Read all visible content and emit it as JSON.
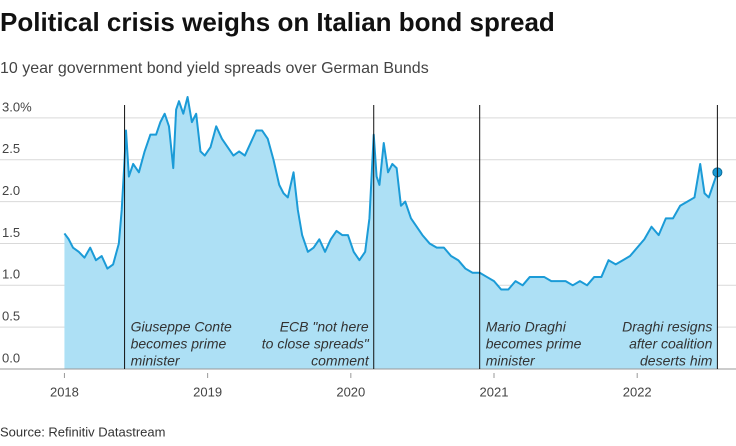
{
  "chart_data": {
    "type": "area",
    "title": "Political crisis weighs on Italian bond spread",
    "subtitle": "10 year government bond yield spreads over German Bunds",
    "source": "Source: Refinitiv Datastream",
    "x": [
      2018.0,
      2018.03,
      2018.06,
      2018.1,
      2018.14,
      2018.18,
      2018.22,
      2018.26,
      2018.3,
      2018.34,
      2018.38,
      2018.4,
      2018.42,
      2018.43,
      2018.45,
      2018.48,
      2018.52,
      2018.56,
      2018.6,
      2018.64,
      2018.67,
      2018.7,
      2018.73,
      2018.76,
      2018.78,
      2018.8,
      2018.83,
      2018.86,
      2018.89,
      2018.92,
      2018.95,
      2018.98,
      2019.02,
      2019.06,
      2019.1,
      2019.14,
      2019.18,
      2019.22,
      2019.26,
      2019.3,
      2019.34,
      2019.38,
      2019.42,
      2019.46,
      2019.5,
      2019.53,
      2019.56,
      2019.6,
      2019.63,
      2019.66,
      2019.7,
      2019.74,
      2019.78,
      2019.82,
      2019.86,
      2019.9,
      2019.94,
      2019.98,
      2020.02,
      2020.06,
      2020.1,
      2020.13,
      2020.16,
      2020.18,
      2020.2,
      2020.23,
      2020.26,
      2020.29,
      2020.32,
      2020.35,
      2020.38,
      2020.42,
      2020.46,
      2020.5,
      2020.55,
      2020.6,
      2020.65,
      2020.7,
      2020.75,
      2020.8,
      2020.85,
      2020.9,
      2020.95,
      2021.0,
      2021.05,
      2021.1,
      2021.15,
      2021.2,
      2021.25,
      2021.3,
      2021.35,
      2021.4,
      2021.45,
      2021.5,
      2021.55,
      2021.6,
      2021.65,
      2021.7,
      2021.75,
      2021.8,
      2021.85,
      2021.9,
      2021.95,
      2022.0,
      2022.05,
      2022.1,
      2022.15,
      2022.2,
      2022.25,
      2022.3,
      2022.35,
      2022.4,
      2022.44,
      2022.47,
      2022.5,
      2022.53,
      2022.56
    ],
    "values": [
      1.62,
      1.55,
      1.45,
      1.4,
      1.33,
      1.45,
      1.3,
      1.35,
      1.2,
      1.25,
      1.5,
      1.9,
      2.5,
      2.85,
      2.3,
      2.45,
      2.35,
      2.6,
      2.8,
      2.8,
      2.95,
      3.05,
      2.9,
      2.4,
      3.1,
      3.2,
      3.05,
      3.25,
      2.95,
      3.05,
      2.6,
      2.55,
      2.65,
      2.9,
      2.75,
      2.65,
      2.55,
      2.6,
      2.55,
      2.7,
      2.85,
      2.85,
      2.75,
      2.5,
      2.2,
      2.1,
      2.05,
      2.35,
      1.9,
      1.6,
      1.4,
      1.45,
      1.55,
      1.4,
      1.55,
      1.65,
      1.6,
      1.6,
      1.4,
      1.3,
      1.4,
      1.8,
      2.8,
      2.3,
      2.2,
      2.7,
      2.35,
      2.45,
      2.4,
      1.95,
      2.0,
      1.8,
      1.7,
      1.6,
      1.5,
      1.45,
      1.45,
      1.35,
      1.3,
      1.2,
      1.15,
      1.15,
      1.1,
      1.05,
      0.95,
      0.95,
      1.05,
      1.0,
      1.1,
      1.1,
      1.1,
      1.05,
      1.05,
      1.05,
      1.0,
      1.05,
      1.0,
      1.1,
      1.1,
      1.3,
      1.25,
      1.3,
      1.35,
      1.45,
      1.55,
      1.7,
      1.6,
      1.8,
      1.8,
      1.95,
      2.0,
      2.05,
      2.45,
      2.1,
      2.05,
      2.2,
      2.35
    ],
    "line_color": "#1b9bd7",
    "fill_color": "#ade0f5",
    "xlim": [
      2017.55,
      2022.69
    ],
    "ylim": [
      0,
      3.25
    ],
    "xticks": [
      2018,
      2019,
      2020,
      2021,
      2022
    ],
    "yticks": [
      {
        "value": 0,
        "label": "0.0"
      },
      0.5,
      {
        "value": 1,
        "label": "1.0"
      },
      1.5,
      {
        "value": 2,
        "label": "2.0"
      },
      2.5,
      {
        "value": 3,
        "label": "3.0%"
      }
    ],
    "grid": true,
    "annotations": [
      {
        "x": 2018.42,
        "align": "left",
        "lines": [
          "Giuseppe Conte",
          "becomes prime",
          "minister"
        ]
      },
      {
        "x": 2020.16,
        "align": "right",
        "lines": [
          "ECB \"not here",
          "to close spreads\"",
          "comment"
        ]
      },
      {
        "x": 2020.9,
        "align": "left",
        "lines": [
          "Mario Draghi",
          "becomes prime",
          "minister"
        ]
      },
      {
        "x": 2022.56,
        "align": "right",
        "lines": [
          "Draghi resigns",
          "after coalition",
          "deserts him"
        ]
      }
    ]
  }
}
